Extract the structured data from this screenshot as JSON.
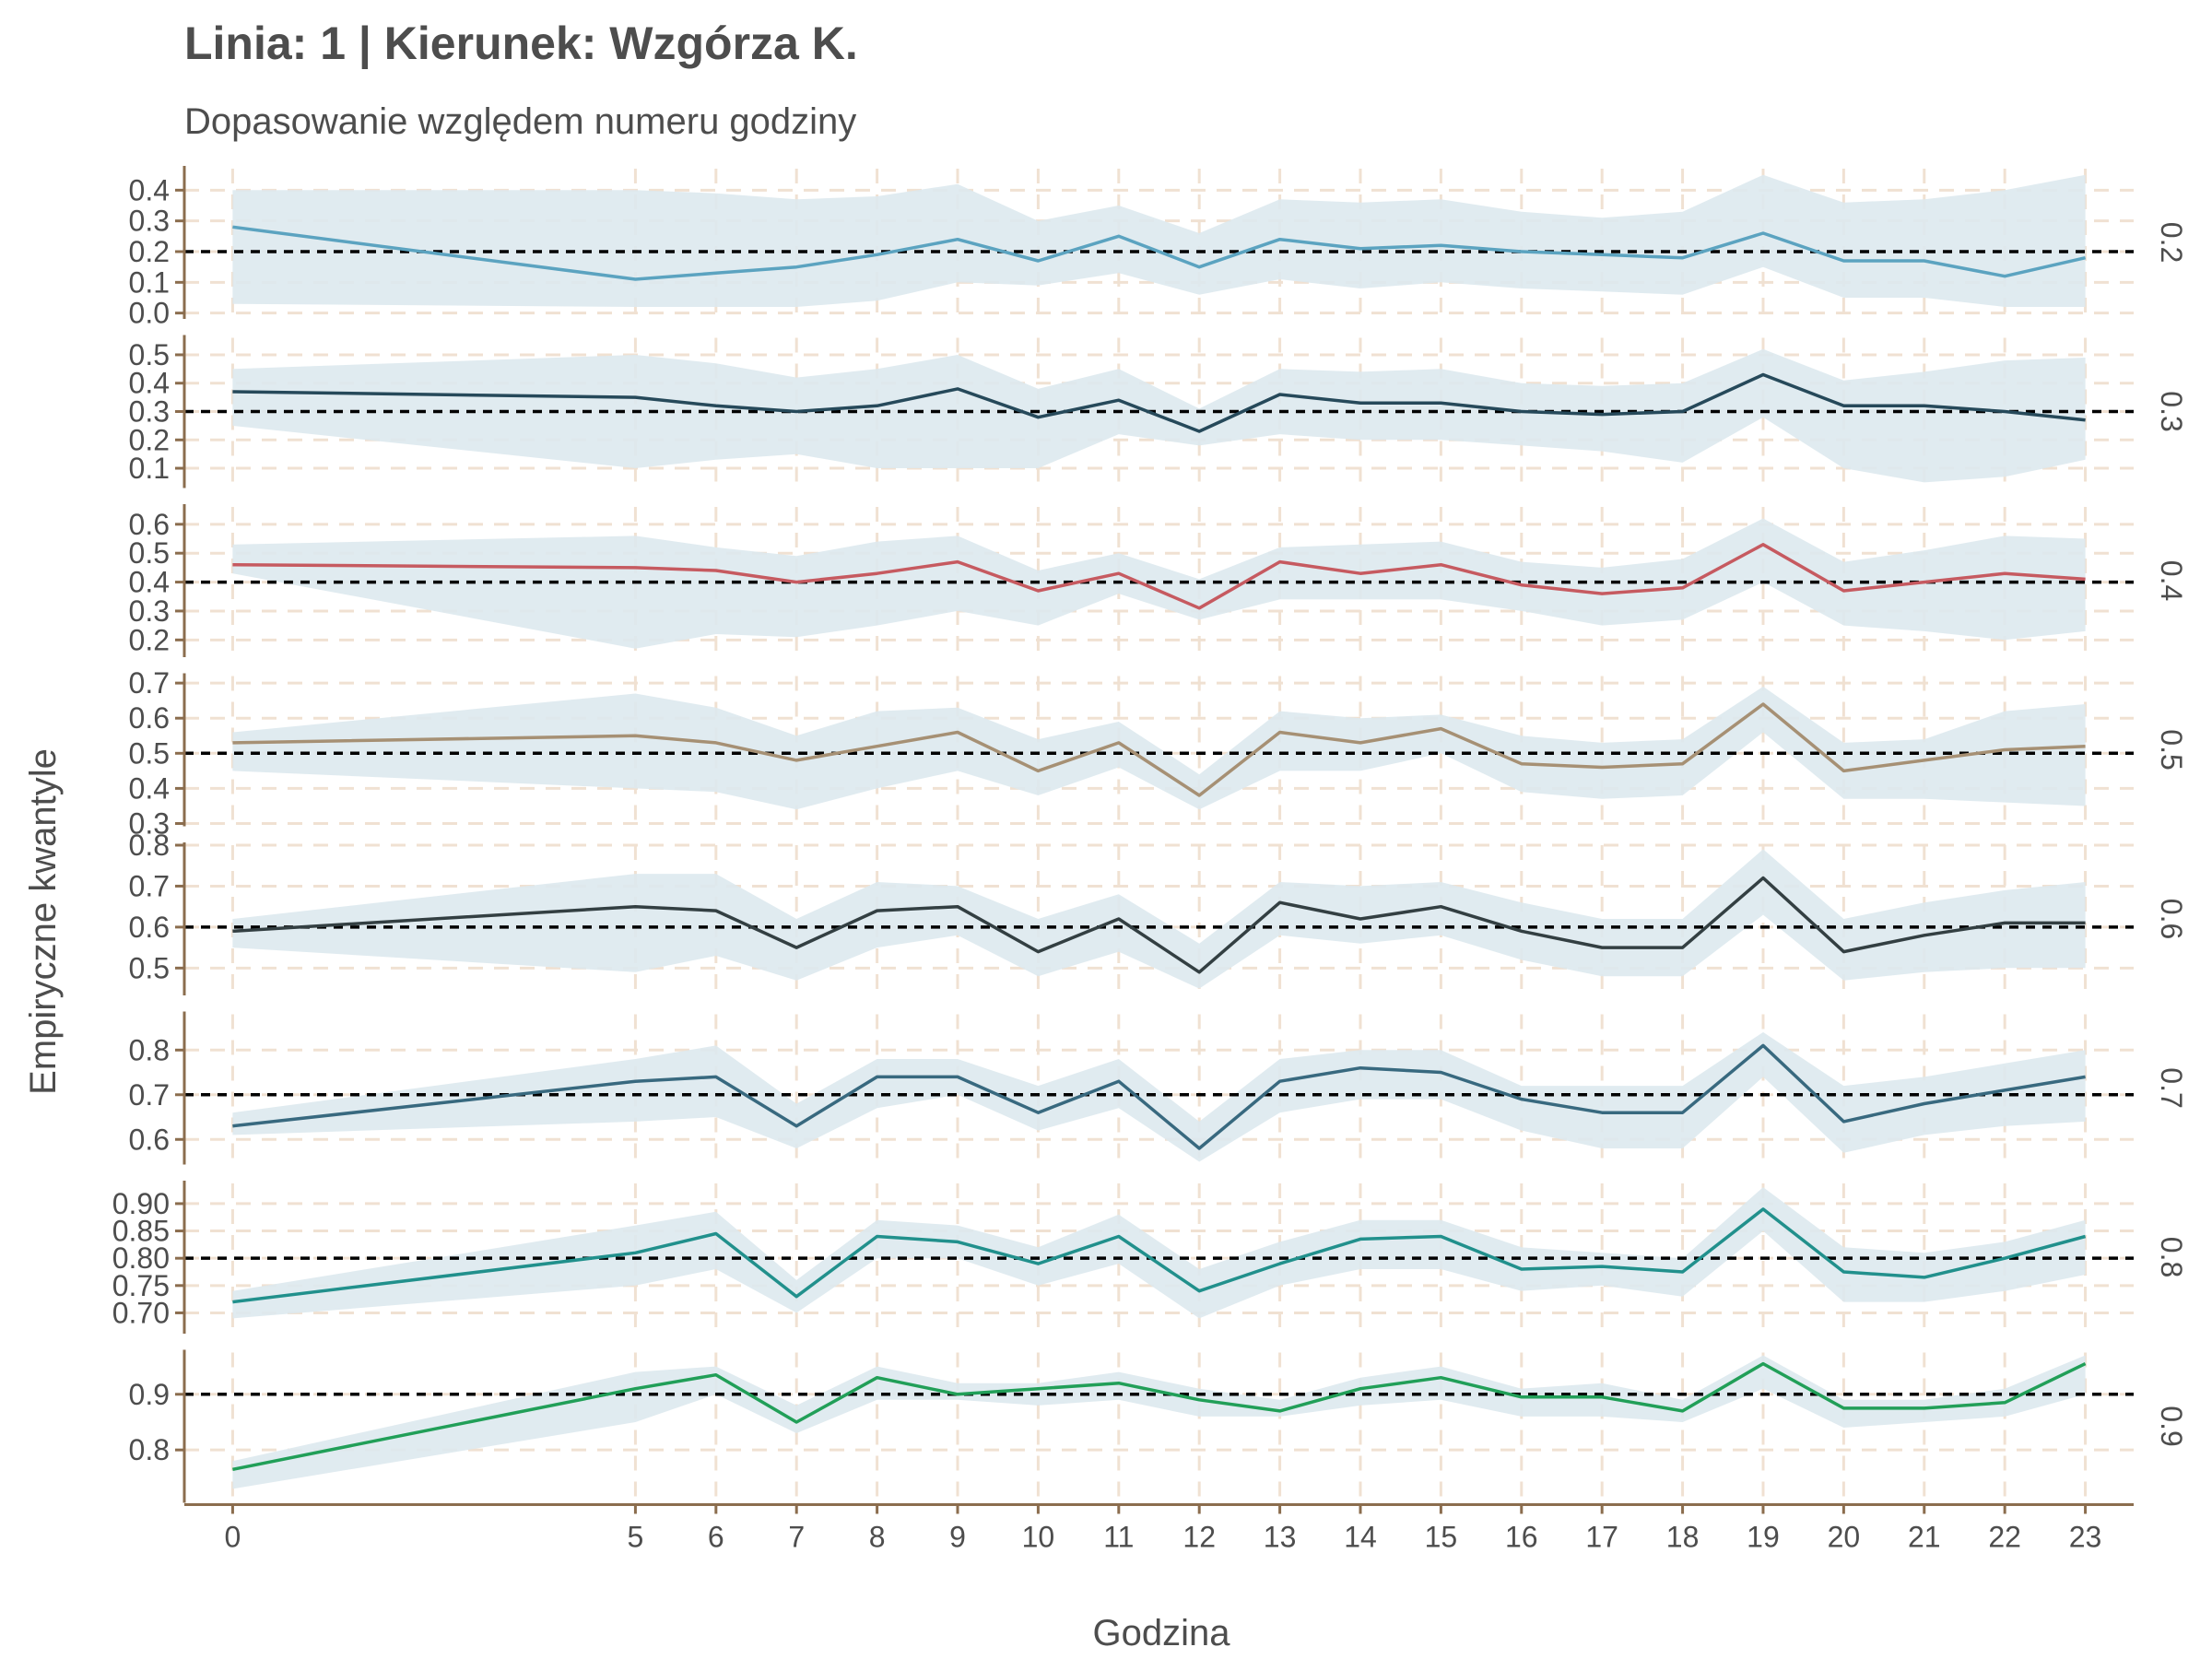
{
  "chart_data": {
    "type": "line",
    "title": "Linia: 1 | Kierunek: Wzgórza K.",
    "subtitle": "Dopasowanie względem numeru godziny",
    "xlabel": "Godzina",
    "ylabel": "Empiryczne kwantyle",
    "x": [
      0,
      5,
      6,
      7,
      8,
      9,
      10,
      11,
      12,
      13,
      14,
      15,
      16,
      17,
      18,
      19,
      20,
      21,
      22,
      23
    ],
    "xticks": [
      0,
      5,
      6,
      7,
      8,
      9,
      10,
      11,
      12,
      13,
      14,
      15,
      16,
      17,
      18,
      19,
      20,
      21,
      22,
      23
    ],
    "xlim": [
      -0.6,
      23.6
    ],
    "grid": "dashed",
    "band_color": "#dde9ee",
    "grid_color": "#f0e1d2",
    "axis_color": "#8b6d4e",
    "reference_color": "#000000",
    "series": [
      {
        "name": "0.2",
        "color": "#5ba3c0",
        "ref": 0.2,
        "ylim": [
          -0.01,
          0.47
        ],
        "ticks": [
          "0.0",
          "0.1",
          "0.2",
          "0.3",
          "0.4"
        ],
        "values": [
          0.28,
          0.11,
          0.13,
          0.15,
          0.19,
          0.24,
          0.17,
          0.25,
          0.15,
          0.24,
          0.21,
          0.22,
          0.2,
          0.19,
          0.18,
          0.26,
          0.17,
          0.17,
          0.12,
          0.18
        ],
        "lower": [
          0.03,
          0.02,
          0.02,
          0.02,
          0.04,
          0.1,
          0.09,
          0.13,
          0.06,
          0.11,
          0.08,
          0.1,
          0.08,
          0.07,
          0.06,
          0.15,
          0.05,
          0.05,
          0.02,
          0.02
        ],
        "upper": [
          0.4,
          0.4,
          0.39,
          0.37,
          0.38,
          0.42,
          0.3,
          0.35,
          0.26,
          0.37,
          0.36,
          0.37,
          0.33,
          0.31,
          0.33,
          0.45,
          0.36,
          0.37,
          0.4,
          0.45
        ]
      },
      {
        "name": "0.3",
        "color": "#26495a",
        "ref": 0.3,
        "ylim": [
          0.04,
          0.56
        ],
        "ticks": [
          "0.1",
          "0.2",
          "0.3",
          "0.4",
          "0.5"
        ],
        "values": [
          0.37,
          0.35,
          0.32,
          0.3,
          0.32,
          0.38,
          0.28,
          0.34,
          0.23,
          0.36,
          0.33,
          0.33,
          0.3,
          0.29,
          0.3,
          0.43,
          0.32,
          0.32,
          0.3,
          0.27
        ],
        "lower": [
          0.25,
          0.1,
          0.13,
          0.15,
          0.1,
          0.1,
          0.1,
          0.22,
          0.18,
          0.22,
          0.2,
          0.2,
          0.18,
          0.16,
          0.12,
          0.28,
          0.1,
          0.05,
          0.07,
          0.13
        ],
        "upper": [
          0.45,
          0.5,
          0.47,
          0.42,
          0.45,
          0.5,
          0.38,
          0.45,
          0.31,
          0.45,
          0.44,
          0.45,
          0.4,
          0.39,
          0.4,
          0.52,
          0.41,
          0.44,
          0.48,
          0.49
        ]
      },
      {
        "name": "0.4",
        "color": "#c65a60",
        "ref": 0.4,
        "ylim": [
          0.15,
          0.66
        ],
        "ticks": [
          "0.2",
          "0.3",
          "0.4",
          "0.5",
          "0.6"
        ],
        "values": [
          0.46,
          0.45,
          0.44,
          0.4,
          0.43,
          0.47,
          0.37,
          0.43,
          0.31,
          0.47,
          0.43,
          0.46,
          0.39,
          0.36,
          0.38,
          0.53,
          0.37,
          0.4,
          0.43,
          0.41
        ],
        "lower": [
          0.43,
          0.17,
          0.22,
          0.21,
          0.25,
          0.3,
          0.25,
          0.36,
          0.27,
          0.34,
          0.34,
          0.34,
          0.3,
          0.25,
          0.27,
          0.4,
          0.25,
          0.23,
          0.2,
          0.23
        ],
        "upper": [
          0.53,
          0.56,
          0.52,
          0.49,
          0.54,
          0.56,
          0.44,
          0.5,
          0.41,
          0.52,
          0.53,
          0.54,
          0.47,
          0.45,
          0.48,
          0.62,
          0.47,
          0.51,
          0.56,
          0.55
        ]
      },
      {
        "name": "0.5",
        "color": "#a69074",
        "ref": 0.5,
        "ylim": [
          0.3,
          0.72
        ],
        "ticks": [
          "0.3",
          "0.4",
          "0.5",
          "0.6",
          "0.7"
        ],
        "values": [
          0.53,
          0.55,
          0.53,
          0.48,
          0.52,
          0.56,
          0.45,
          0.53,
          0.38,
          0.56,
          0.53,
          0.57,
          0.47,
          0.46,
          0.47,
          0.64,
          0.45,
          0.48,
          0.51,
          0.52
        ],
        "lower": [
          0.45,
          0.4,
          0.39,
          0.34,
          0.4,
          0.45,
          0.38,
          0.46,
          0.34,
          0.45,
          0.45,
          0.5,
          0.39,
          0.37,
          0.38,
          0.56,
          0.37,
          0.37,
          0.36,
          0.35
        ],
        "upper": [
          0.56,
          0.67,
          0.63,
          0.55,
          0.62,
          0.63,
          0.54,
          0.59,
          0.44,
          0.62,
          0.6,
          0.61,
          0.55,
          0.53,
          0.54,
          0.69,
          0.53,
          0.54,
          0.62,
          0.64
        ]
      },
      {
        "name": "0.6",
        "color": "#333f42",
        "ref": 0.6,
        "ylim": [
          0.44,
          0.8
        ],
        "ticks": [
          "0.5",
          "0.6",
          "0.7",
          "0.8"
        ],
        "values": [
          0.59,
          0.65,
          0.64,
          0.55,
          0.64,
          0.65,
          0.54,
          0.62,
          0.49,
          0.66,
          0.62,
          0.65,
          0.59,
          0.55,
          0.55,
          0.72,
          0.54,
          0.58,
          0.61,
          0.61
        ],
        "lower": [
          0.55,
          0.49,
          0.53,
          0.47,
          0.55,
          0.58,
          0.48,
          0.54,
          0.45,
          0.58,
          0.56,
          0.58,
          0.52,
          0.48,
          0.48,
          0.63,
          0.47,
          0.49,
          0.5,
          0.5
        ],
        "upper": [
          0.62,
          0.73,
          0.73,
          0.62,
          0.71,
          0.7,
          0.62,
          0.68,
          0.56,
          0.71,
          0.7,
          0.71,
          0.66,
          0.62,
          0.62,
          0.79,
          0.62,
          0.66,
          0.69,
          0.71
        ]
      },
      {
        "name": "0.7",
        "color": "#38697f",
        "ref": 0.7,
        "ylim": [
          0.55,
          0.88
        ],
        "ticks": [
          "0.6",
          "0.7",
          "0.8"
        ],
        "values": [
          0.63,
          0.73,
          0.74,
          0.63,
          0.74,
          0.74,
          0.66,
          0.73,
          0.58,
          0.73,
          0.76,
          0.75,
          0.69,
          0.66,
          0.66,
          0.81,
          0.64,
          0.68,
          0.71,
          0.74
        ],
        "lower": [
          0.61,
          0.64,
          0.65,
          0.58,
          0.67,
          0.7,
          0.62,
          0.67,
          0.55,
          0.66,
          0.69,
          0.69,
          0.62,
          0.58,
          0.58,
          0.74,
          0.57,
          0.61,
          0.63,
          0.64
        ],
        "upper": [
          0.66,
          0.78,
          0.81,
          0.68,
          0.78,
          0.78,
          0.72,
          0.78,
          0.64,
          0.78,
          0.8,
          0.8,
          0.72,
          0.72,
          0.72,
          0.84,
          0.72,
          0.74,
          0.77,
          0.8
        ]
      },
      {
        "name": "0.8",
        "color": "#21908c",
        "ref": 0.8,
        "ylim": [
          0.667,
          0.937
        ],
        "ticks": [
          "0.70",
          "0.75",
          "0.80",
          "0.85",
          "0.90"
        ],
        "values": [
          0.72,
          0.81,
          0.845,
          0.73,
          0.84,
          0.83,
          0.79,
          0.84,
          0.74,
          0.79,
          0.835,
          0.84,
          0.78,
          0.785,
          0.775,
          0.89,
          0.775,
          0.765,
          0.8,
          0.84
        ],
        "lower": [
          0.69,
          0.75,
          0.78,
          0.7,
          0.8,
          0.8,
          0.75,
          0.79,
          0.69,
          0.75,
          0.78,
          0.78,
          0.74,
          0.75,
          0.73,
          0.85,
          0.72,
          0.72,
          0.74,
          0.77
        ],
        "upper": [
          0.74,
          0.86,
          0.885,
          0.76,
          0.87,
          0.86,
          0.82,
          0.88,
          0.78,
          0.83,
          0.87,
          0.87,
          0.82,
          0.81,
          0.8,
          0.93,
          0.82,
          0.81,
          0.83,
          0.87
        ]
      },
      {
        "name": "0.9",
        "color": "#219f58",
        "ref": 0.9,
        "ylim": [
          0.71,
          0.975
        ],
        "ticks": [
          "0.8",
          "0.9"
        ],
        "values": [
          0.765,
          0.91,
          0.935,
          0.85,
          0.93,
          0.9,
          0.91,
          0.92,
          0.89,
          0.87,
          0.91,
          0.93,
          0.895,
          0.895,
          0.87,
          0.955,
          0.875,
          0.875,
          0.885,
          0.955
        ],
        "lower": [
          0.73,
          0.85,
          0.9,
          0.83,
          0.89,
          0.89,
          0.88,
          0.89,
          0.86,
          0.86,
          0.88,
          0.89,
          0.86,
          0.86,
          0.85,
          0.91,
          0.84,
          0.85,
          0.86,
          0.9
        ],
        "upper": [
          0.78,
          0.94,
          0.95,
          0.88,
          0.95,
          0.92,
          0.92,
          0.94,
          0.91,
          0.89,
          0.93,
          0.95,
          0.91,
          0.92,
          0.89,
          0.97,
          0.89,
          0.89,
          0.91,
          0.97
        ]
      }
    ]
  }
}
